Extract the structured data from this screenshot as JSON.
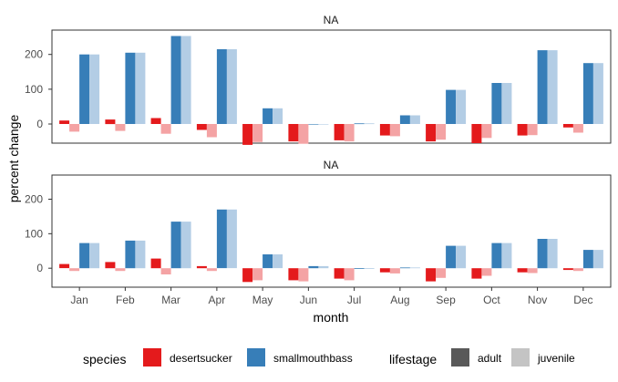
{
  "chart_data": {
    "type": "bar",
    "ylabel": "percent change",
    "xlabel": "month",
    "categories": [
      "Jan",
      "Feb",
      "Mar",
      "Apr",
      "May",
      "Jun",
      "Jul",
      "Aug",
      "Sep",
      "Oct",
      "Nov",
      "Dec"
    ],
    "ylim": [
      -55,
      270
    ],
    "yticks": [
      0,
      100,
      200
    ],
    "grid": false,
    "colors": {
      "desertsucker_adult": "#e41a1c",
      "desertsucker_juvenile": "#f4a3a4",
      "smallmouthbass_adult": "#377eb8",
      "smallmouthbass_juvenile": "#b3cde5",
      "legend_adult": "#595959",
      "legend_juvenile": "#c4c4c4"
    },
    "panels": [
      {
        "strip": "NA",
        "series": [
          {
            "species": "desertsucker",
            "lifestage": "adult",
            "values": [
              10,
              13,
              17,
              -17,
              -60,
              -50,
              -47,
              -33,
              -50,
              -55,
              -33,
              -10
            ]
          },
          {
            "species": "desertsucker",
            "lifestage": "juvenile",
            "values": [
              -22,
              -20,
              -28,
              -38,
              -52,
              -57,
              -50,
              -35,
              -45,
              -40,
              -32,
              -25
            ]
          },
          {
            "species": "smallmouthbass",
            "lifestage": "adult",
            "values": [
              200,
              205,
              253,
              215,
              45,
              0,
              2,
              25,
              98,
              118,
              212,
              175
            ]
          },
          {
            "species": "smallmouthbass",
            "lifestage": "juvenile",
            "values": [
              200,
              205,
              253,
              215,
              45,
              0,
              2,
              25,
              98,
              118,
              212,
              175
            ]
          }
        ]
      },
      {
        "strip": "NA",
        "series": [
          {
            "species": "desertsucker",
            "lifestage": "adult",
            "values": [
              12,
              18,
              28,
              6,
              -40,
              -35,
              -30,
              -12,
              -38,
              -30,
              -12,
              -5
            ]
          },
          {
            "species": "desertsucker",
            "lifestage": "juvenile",
            "values": [
              -8,
              -8,
              -18,
              -8,
              -35,
              -38,
              -35,
              -15,
              -28,
              -22,
              -14,
              -8
            ]
          },
          {
            "species": "smallmouthbass",
            "lifestage": "adult",
            "values": [
              73,
              80,
              135,
              170,
              40,
              6,
              -2,
              2,
              65,
              73,
              85,
              53
            ]
          },
          {
            "species": "smallmouthbass",
            "lifestage": "juvenile",
            "values": [
              73,
              80,
              135,
              170,
              40,
              6,
              -2,
              2,
              65,
              73,
              85,
              53
            ]
          }
        ]
      }
    ],
    "legend": {
      "position": "bottom",
      "species_title": "species",
      "species_items": [
        "desertsucker",
        "smallmouthbass"
      ],
      "lifestage_title": "lifestage",
      "lifestage_items": [
        "adult",
        "juvenile"
      ]
    }
  }
}
